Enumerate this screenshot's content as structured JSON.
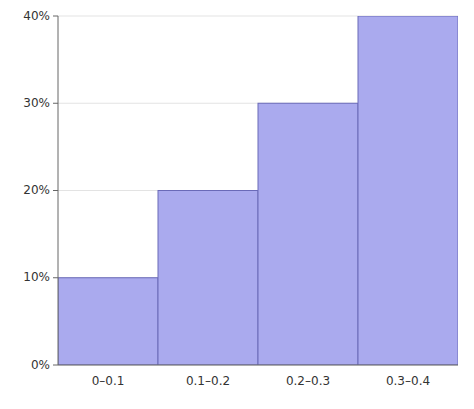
{
  "chart_data": {
    "type": "bar",
    "categories": [
      "0–0.1",
      "0.1–0.2",
      "0.2–0.3",
      "0.3–0.4"
    ],
    "values": [
      10,
      20,
      30,
      40
    ],
    "color": "#aaaaee",
    "ylim": [
      0,
      40
    ],
    "yticks": [
      {
        "value": 0,
        "label": "0%"
      },
      {
        "value": 10,
        "label": "10%"
      },
      {
        "value": 20,
        "label": "20%"
      },
      {
        "value": 30,
        "label": "30%"
      },
      {
        "value": 40,
        "label": "40%"
      }
    ],
    "grid": true
  }
}
